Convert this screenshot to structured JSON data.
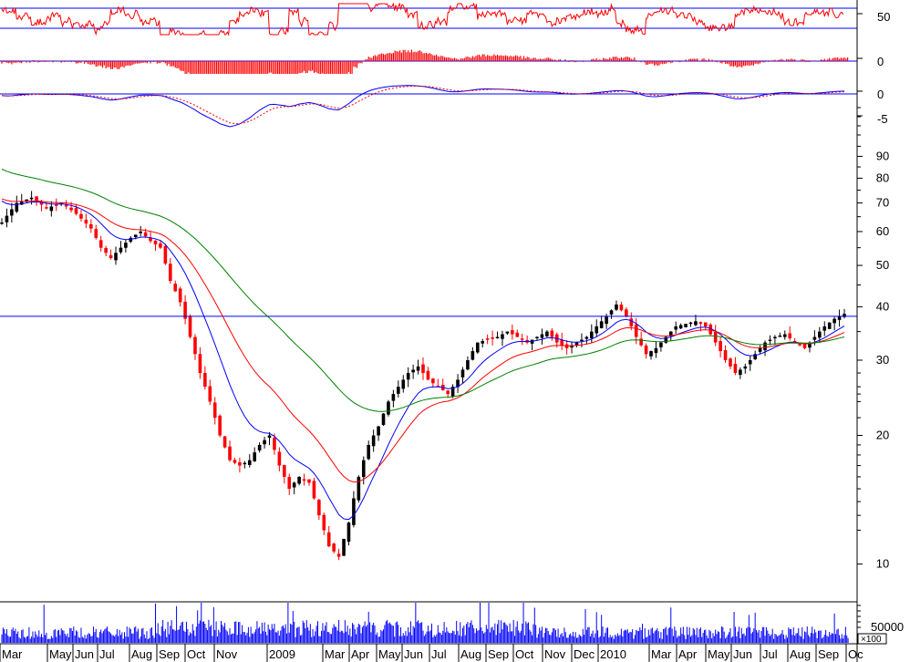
{
  "chart_data": {
    "type": "candlestick",
    "scale": "log",
    "grid": false,
    "legend": "none",
    "x_tick_labels": [
      "Mar",
      "May",
      "Jun",
      "Jul",
      "Aug",
      "Sep",
      "Oct",
      "Nov",
      "2009",
      "Mar",
      "Apr",
      "May",
      "Jun",
      "Jul",
      "Aug",
      "Sep",
      "Oct",
      "Nov",
      "Dec",
      "2010",
      "Mar",
      "Apr",
      "May",
      "Jun",
      "Jul",
      "Aug",
      "Sep",
      "Oc"
    ],
    "price_axis_labels": [
      "90",
      "80",
      "70",
      "60",
      "50",
      "40",
      "30",
      "20",
      "10"
    ],
    "indicator_axis_labels": [
      "50",
      "0",
      "0",
      "-5"
    ],
    "volume_axis_label": "50000",
    "volume_multiplier": "×100",
    "price_reference_line": 38.0,
    "price_path": [
      [
        0,
        63
      ],
      [
        3,
        70
      ],
      [
        6,
        72
      ],
      [
        9,
        68
      ],
      [
        12,
        70
      ],
      [
        15,
        66
      ],
      [
        18,
        61
      ],
      [
        20,
        55
      ],
      [
        22,
        52
      ],
      [
        24,
        55
      ],
      [
        26,
        58
      ],
      [
        28,
        60
      ],
      [
        30,
        57
      ],
      [
        32,
        55
      ],
      [
        34,
        46
      ],
      [
        36,
        41
      ],
      [
        38,
        34
      ],
      [
        40,
        28
      ],
      [
        42,
        24
      ],
      [
        44,
        20
      ],
      [
        46,
        17.5
      ],
      [
        48,
        17
      ],
      [
        50,
        17.5
      ],
      [
        52,
        19
      ],
      [
        54,
        20
      ],
      [
        56,
        17
      ],
      [
        58,
        15
      ],
      [
        60,
        16
      ],
      [
        62,
        15.5
      ],
      [
        64,
        13
      ],
      [
        66,
        11
      ],
      [
        68,
        10.4
      ],
      [
        70,
        12.5
      ],
      [
        72,
        16
      ],
      [
        74,
        19
      ],
      [
        76,
        21
      ],
      [
        78,
        24
      ],
      [
        80,
        26
      ],
      [
        82,
        28
      ],
      [
        84,
        29
      ],
      [
        86,
        27
      ],
      [
        88,
        26
      ],
      [
        90,
        25
      ],
      [
        92,
        27
      ],
      [
        94,
        30
      ],
      [
        96,
        33
      ],
      [
        98,
        33.5
      ],
      [
        100,
        34
      ],
      [
        102,
        35
      ],
      [
        104,
        34
      ],
      [
        106,
        33
      ],
      [
        108,
        34
      ],
      [
        110,
        35
      ],
      [
        112,
        33
      ],
      [
        114,
        32
      ],
      [
        116,
        33
      ],
      [
        118,
        34
      ],
      [
        120,
        36
      ],
      [
        122,
        38
      ],
      [
        124,
        40.5
      ],
      [
        126,
        38
      ],
      [
        128,
        34
      ],
      [
        130,
        31
      ],
      [
        132,
        32
      ],
      [
        134,
        34
      ],
      [
        136,
        36
      ],
      [
        138,
        36.5
      ],
      [
        140,
        37
      ],
      [
        142,
        36
      ],
      [
        144,
        33
      ],
      [
        146,
        30
      ],
      [
        148,
        28
      ],
      [
        150,
        29
      ],
      [
        152,
        31
      ],
      [
        154,
        33
      ],
      [
        156,
        34
      ],
      [
        158,
        34.5
      ],
      [
        160,
        33
      ],
      [
        162,
        32
      ],
      [
        164,
        34
      ],
      [
        166,
        36
      ],
      [
        168,
        37.5
      ],
      [
        170,
        38.5
      ]
    ],
    "series": [
      {
        "name": "",
        "color": "#0000ff",
        "period": 10
      },
      {
        "name": "",
        "color": "#ff0000",
        "period": 20
      },
      {
        "name": "",
        "color": "#008000",
        "period": 40
      }
    ],
    "colors": {
      "up": "#000000",
      "down": "#ff0000",
      "line": "#0000ff",
      "volume": "#0000ff"
    }
  }
}
